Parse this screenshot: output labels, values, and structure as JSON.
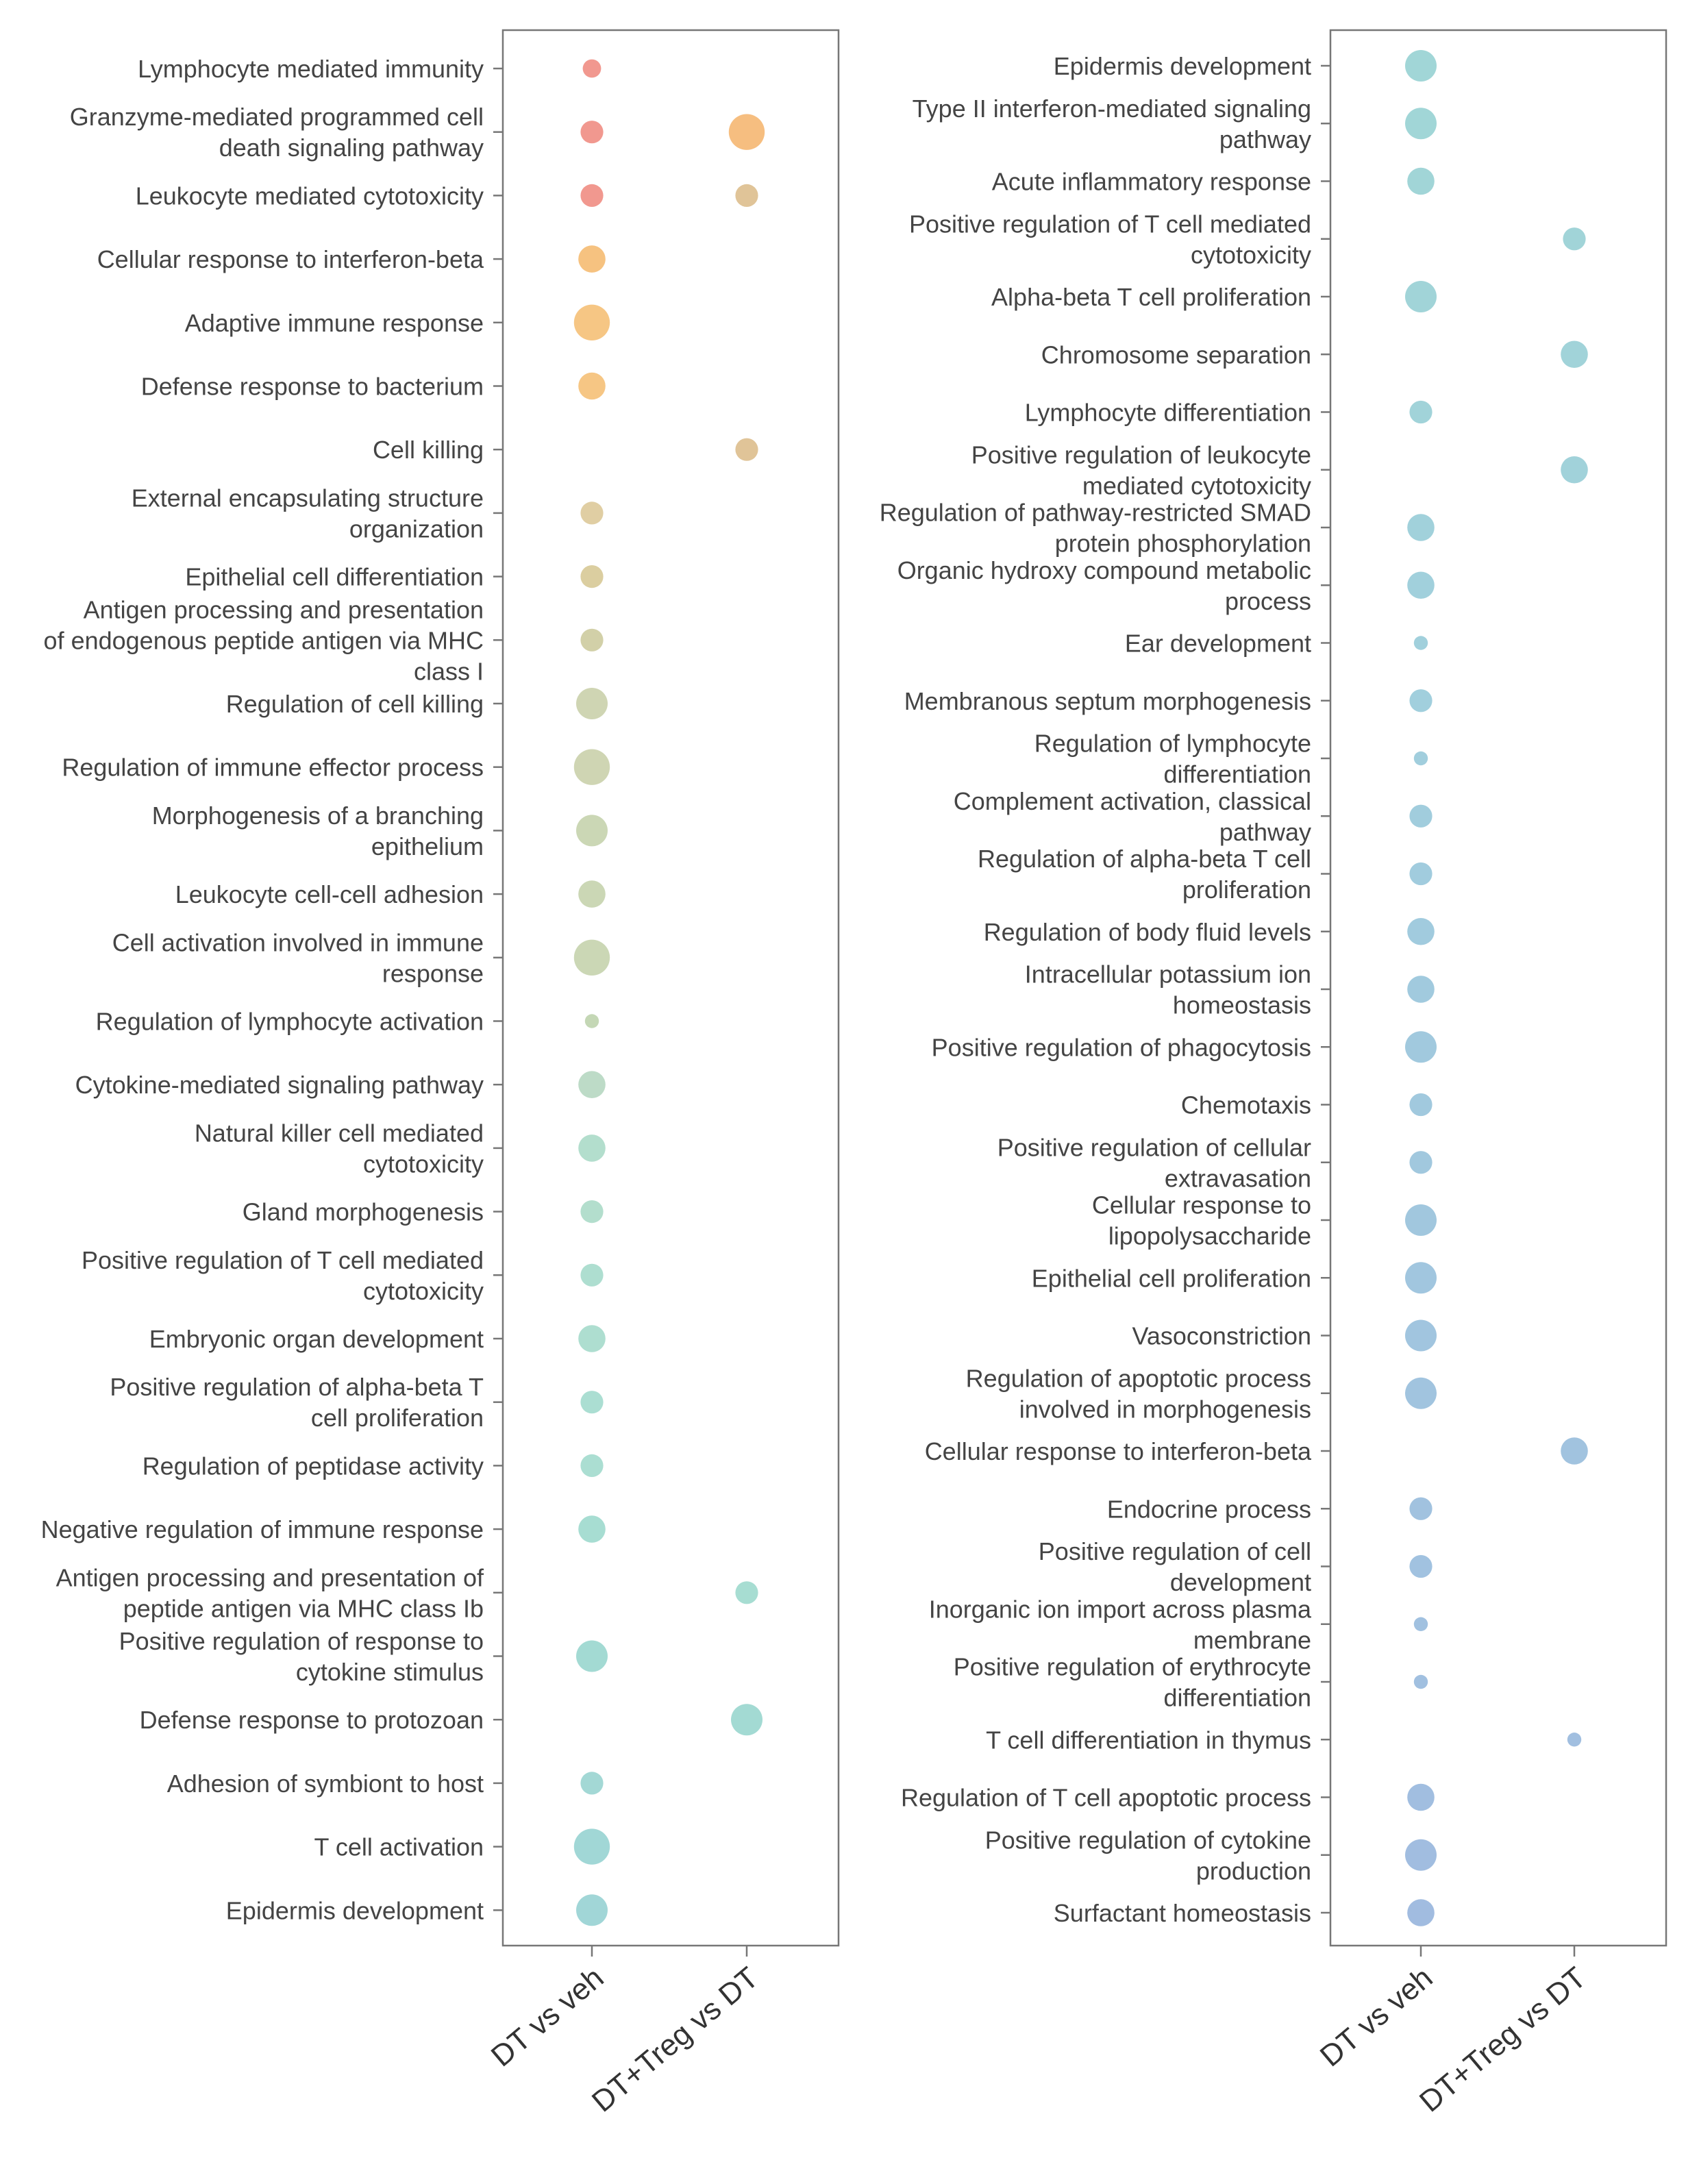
{
  "chart_data": [
    {
      "type": "scatter",
      "x_categories": [
        "DT vs veh",
        "DT+Treg vs DT"
      ],
      "points": [
        {
          "term": "Lymphocyte mediated immunity",
          "col": 0,
          "size": 2,
          "color": "#ef8a7f"
        },
        {
          "term": "Granzyme-mediated programmed cell death signaling pathway",
          "col": 0,
          "size": 3,
          "color": "#ef8a7f"
        },
        {
          "term": "Granzyme-mediated programmed cell death signaling pathway",
          "col": 1,
          "size": 6,
          "color": "#f5b56e"
        },
        {
          "term": "Leukocyte mediated cytotoxicity",
          "col": 0,
          "size": 3,
          "color": "#ef8a7f"
        },
        {
          "term": "Leukocyte mediated cytotoxicity",
          "col": 1,
          "size": 3,
          "color": "#dcbc8a"
        },
        {
          "term": "Cellular response to interferon-beta",
          "col": 0,
          "size": 4,
          "color": "#f5b96e"
        },
        {
          "term": "Adaptive immune response",
          "col": 0,
          "size": 6,
          "color": "#f5be73"
        },
        {
          "term": "Defense response to bacterium",
          "col": 0,
          "size": 4,
          "color": "#f5be73"
        },
        {
          "term": "Cell killing",
          "col": 1,
          "size": 3,
          "color": "#dcbc8a"
        },
        {
          "term": "External encapsulating structure organization",
          "col": 0,
          "size": 3,
          "color": "#dcc796"
        },
        {
          "term": "Epithelial cell differentiation",
          "col": 0,
          "size": 3,
          "color": "#d6c793"
        },
        {
          "term": "Antigen processing and presentation of endogenous peptide antigen via MHC class I",
          "col": 0,
          "size": 3,
          "color": "#ccc99c"
        },
        {
          "term": "Regulation of cell killing",
          "col": 0,
          "size": 5,
          "color": "#c8cfa8"
        },
        {
          "term": "Regulation of immune effector process",
          "col": 0,
          "size": 6,
          "color": "#c8cfa8"
        },
        {
          "term": "Morphogenesis of a branching epithelium",
          "col": 0,
          "size": 5,
          "color": "#c4d1ab"
        },
        {
          "term": "Leukocyte cell-cell adhesion",
          "col": 0,
          "size": 4,
          "color": "#c4d1ab"
        },
        {
          "term": "Cell activation involved in immune response",
          "col": 0,
          "size": 6,
          "color": "#c4d1ab"
        },
        {
          "term": "Regulation of lymphocyte activation",
          "col": 0,
          "size": 1,
          "color": "#bcd1ab"
        },
        {
          "term": "Cytokine-mediated signaling pathway",
          "col": 0,
          "size": 4,
          "color": "#b4d6bf"
        },
        {
          "term": "Natural killer cell mediated cytotoxicity",
          "col": 0,
          "size": 4,
          "color": "#a9d9c6"
        },
        {
          "term": "Gland morphogenesis",
          "col": 0,
          "size": 3,
          "color": "#a9d9c6"
        },
        {
          "term": "Positive regulation of T cell mediated cytotoxicity",
          "col": 0,
          "size": 3,
          "color": "#a3d9c9"
        },
        {
          "term": "Embryonic organ development",
          "col": 0,
          "size": 4,
          "color": "#a3d9c9"
        },
        {
          "term": "Positive regulation of alpha-beta T cell proliferation",
          "col": 0,
          "size": 3,
          "color": "#9fd9cc"
        },
        {
          "term": "Regulation of peptidase activity",
          "col": 0,
          "size": 3,
          "color": "#9fd9cc"
        },
        {
          "term": "Negative regulation of immune response",
          "col": 0,
          "size": 4,
          "color": "#9bd8cc"
        },
        {
          "term": "Antigen processing and presentation of peptide antigen via MHC class Ib",
          "col": 1,
          "size": 3,
          "color": "#9bd8cc"
        },
        {
          "term": "Positive regulation of response to cytokine stimulus",
          "col": 0,
          "size": 5,
          "color": "#96d5cd"
        },
        {
          "term": "Defense response to protozoan",
          "col": 1,
          "size": 5,
          "color": "#96d5cd"
        },
        {
          "term": "Adhesion of symbiont to host",
          "col": 0,
          "size": 3,
          "color": "#96d3cf"
        },
        {
          "term": "T cell activation",
          "col": 0,
          "size": 6,
          "color": "#94d1d0"
        },
        {
          "term": "Epidermis development",
          "col": 0,
          "size": 5,
          "color": "#94d0d1"
        }
      ]
    },
    {
      "type": "scatter",
      "x_categories": [
        "DT vs veh",
        "DT+Treg vs DT"
      ],
      "points": [
        {
          "term": "Epidermis development",
          "col": 0,
          "size": 5,
          "color": "#94d0d1"
        },
        {
          "term": "Type II interferon-mediated signaling pathway",
          "col": 0,
          "size": 5,
          "color": "#94d0d1"
        },
        {
          "term": "Acute inflammatory response",
          "col": 0,
          "size": 4,
          "color": "#94cfd2"
        },
        {
          "term": "Positive regulation of T cell mediated cytotoxicity",
          "col": 1,
          "size": 3,
          "color": "#94ced3"
        },
        {
          "term": "Alpha-beta T cell proliferation",
          "col": 0,
          "size": 5,
          "color": "#94ced3"
        },
        {
          "term": "Chromosome separation",
          "col": 1,
          "size": 4,
          "color": "#94cdd4"
        },
        {
          "term": "Lymphocyte differentiation",
          "col": 0,
          "size": 3,
          "color": "#94cdd4"
        },
        {
          "term": "Positive regulation of leukocyte mediated cytotoxicity",
          "col": 1,
          "size": 4,
          "color": "#94ccd5"
        },
        {
          "term": "Regulation of pathway-restricted SMAD protein phosphorylation",
          "col": 0,
          "size": 4,
          "color": "#94cbd6"
        },
        {
          "term": "Organic hydroxy compound metabolic process",
          "col": 0,
          "size": 4,
          "color": "#94cad7"
        },
        {
          "term": "Ear development",
          "col": 0,
          "size": 1,
          "color": "#94c9d7"
        },
        {
          "term": "Membranous septum morphogenesis",
          "col": 0,
          "size": 3,
          "color": "#94c8d8"
        },
        {
          "term": "Regulation of lymphocyte differentiation",
          "col": 0,
          "size": 1,
          "color": "#94c7d8"
        },
        {
          "term": "Complement activation, classical pathway",
          "col": 0,
          "size": 3,
          "color": "#94c6d8"
        },
        {
          "term": "Regulation of alpha-beta T cell proliferation",
          "col": 0,
          "size": 3,
          "color": "#94c5d9"
        },
        {
          "term": "Regulation of body fluid levels",
          "col": 0,
          "size": 4,
          "color": "#94c4d9"
        },
        {
          "term": "Intracellular potassium ion homeostasis",
          "col": 0,
          "size": 4,
          "color": "#94c3d9"
        },
        {
          "term": "Positive regulation of phagocytosis",
          "col": 0,
          "size": 5,
          "color": "#94c2d9"
        },
        {
          "term": "Chemotaxis",
          "col": 0,
          "size": 3,
          "color": "#94c1da"
        },
        {
          "term": "Positive regulation of cellular extravasation",
          "col": 0,
          "size": 3,
          "color": "#94c0da"
        },
        {
          "term": "Cellular response to lipopolysaccharide",
          "col": 0,
          "size": 5,
          "color": "#94bfda"
        },
        {
          "term": "Epithelial cell proliferation",
          "col": 0,
          "size": 5,
          "color": "#94bedb"
        },
        {
          "term": "Vasoconstriction",
          "col": 0,
          "size": 5,
          "color": "#94bddb"
        },
        {
          "term": "Regulation of apoptotic process involved in morphogenesis",
          "col": 0,
          "size": 5,
          "color": "#94bcdb"
        },
        {
          "term": "Cellular response to interferon-beta",
          "col": 1,
          "size": 4,
          "color": "#94bbdb"
        },
        {
          "term": "Endocrine process",
          "col": 0,
          "size": 3,
          "color": "#94badb"
        },
        {
          "term": "Positive regulation of cell development",
          "col": 0,
          "size": 3,
          "color": "#94b9dc"
        },
        {
          "term": "Inorganic ion import across plasma membrane",
          "col": 0,
          "size": 1,
          "color": "#94b8dc"
        },
        {
          "term": "Positive regulation of erythrocyte differentiation",
          "col": 0,
          "size": 1,
          "color": "#94b7dc"
        },
        {
          "term": "T cell differentiation in thymus",
          "col": 1,
          "size": 1,
          "color": "#94b6dc"
        },
        {
          "term": "Regulation of T cell apoptotic process",
          "col": 0,
          "size": 4,
          "color": "#94b5dc"
        },
        {
          "term": "Positive regulation of cytokine production",
          "col": 0,
          "size": 5,
          "color": "#94b4dc"
        },
        {
          "term": "Surfactant homeostasis",
          "col": 0,
          "size": 4,
          "color": "#94b3dc"
        }
      ]
    }
  ]
}
